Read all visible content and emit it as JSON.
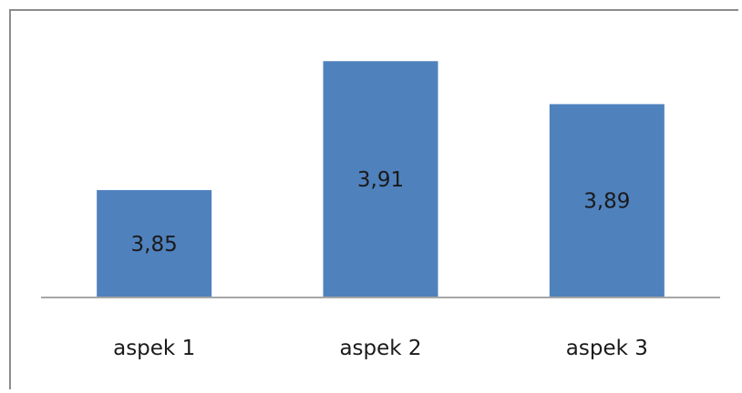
{
  "chart_data": {
    "type": "bar",
    "categories": [
      "aspek 1",
      "aspek 2",
      "aspek 3"
    ],
    "values": [
      3.85,
      3.91,
      3.89
    ],
    "value_labels": [
      "3,85",
      "3,91",
      "3,89"
    ],
    "title": "",
    "xlabel": "",
    "ylabel": "",
    "ylim": [
      3.8,
      3.93
    ],
    "grid": false,
    "legend": "none",
    "bar_color": "#4F81BD",
    "axis_color": "#A6A6A6"
  }
}
